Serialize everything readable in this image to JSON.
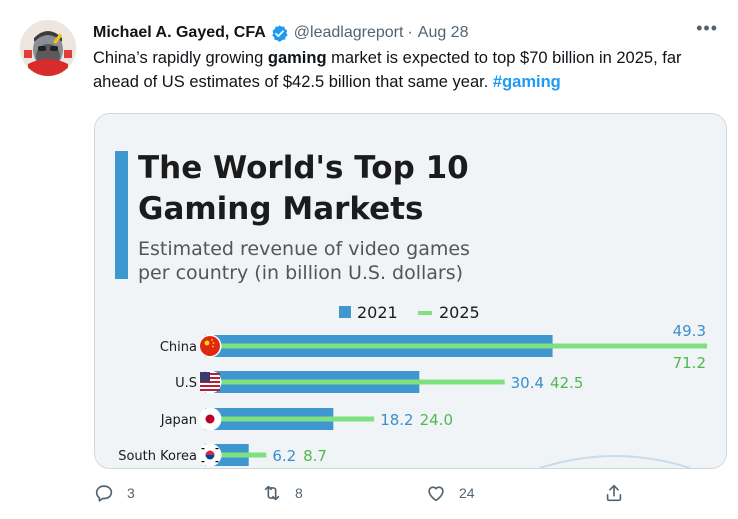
{
  "tweet": {
    "author_name": "Michael A. Gayed, CFA",
    "handle": "@leadlagreport",
    "separator": "·",
    "date": "Aug 28",
    "more_label": "•••",
    "text_part1": "China’s rapidly growing ",
    "text_bold": "gaming",
    "text_part2": " market is expected to top $70 billion in 2025, far ahead of US estimates of $42.5 billion that same year. ",
    "hashtag": "#gaming"
  },
  "chart": {
    "title_line1": "The World's Top 10",
    "title_line2": "Gaming Markets",
    "subtitle_line1": "Estimated revenue of video games",
    "subtitle_line2": "per country (in billion U.S. dollars)",
    "colors": {
      "bar_2021": "#3f97d0",
      "bar_2025": "#7fe07f",
      "label_2021": "#3a8fcf",
      "label_2025": "#4fb94f",
      "accent": "#3f97d0"
    }
  },
  "chart_data": {
    "type": "bar",
    "orientation": "horizontal",
    "categories": [
      "China",
      "U.S",
      "Japan",
      "South Korea"
    ],
    "series": [
      {
        "name": "2021",
        "values": [
          49.3,
          30.4,
          18.2,
          6.2
        ]
      },
      {
        "name": "2025",
        "values": [
          71.2,
          42.5,
          24.0,
          8.7
        ]
      }
    ],
    "value_labels_2021": [
      "49.3",
      "30.4",
      "18.2",
      "6.2"
    ],
    "value_labels_2025": [
      "71.2",
      "42.5",
      "24.0",
      "8.7"
    ],
    "title": "The World's Top 10 Gaming Markets",
    "subtitle": "Estimated revenue of video games per country (in billion U.S. dollars)",
    "legend_position": "top",
    "xlim": [
      0,
      71.2
    ],
    "grid": false
  },
  "actions": {
    "reply_count": "3",
    "retweet_count": "8",
    "like_count": "24"
  },
  "icons": {
    "verified": "verified-badge-icon",
    "reply": "reply-icon",
    "retweet": "retweet-icon",
    "like": "heart-icon",
    "share": "share-icon"
  }
}
